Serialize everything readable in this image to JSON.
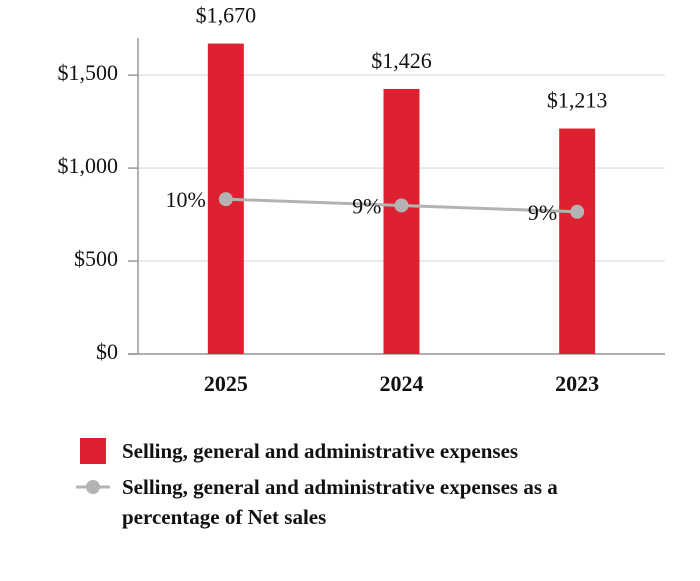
{
  "chart_data": {
    "type": "bar-line",
    "categories": [
      "2025",
      "2024",
      "2023"
    ],
    "series": [
      {
        "name": "Selling, general and administrative expenses",
        "type": "bar",
        "color": "#de2131",
        "values": [
          1670,
          1426,
          1213
        ],
        "value_labels": [
          "$1,670",
          "$1,426",
          "$1,213"
        ]
      },
      {
        "name": "Selling, general and administrative expenses as a percentage of Net sales",
        "type": "line",
        "axis": "y2",
        "color": "#b3b3b3",
        "values": [
          9.8,
          9.4,
          9.0
        ],
        "value_labels": [
          "10%",
          "9%",
          "9%"
        ]
      }
    ],
    "ylim": [
      0,
      1700
    ],
    "yticks": [
      {
        "value": 0,
        "label": "$0"
      },
      {
        "value": 500,
        "label": "$500"
      },
      {
        "value": 1000,
        "label": "$1,000"
      },
      {
        "value": 1500,
        "label": "$1,500"
      }
    ],
    "y2lim": [
      0,
      20
    ],
    "grid": true
  }
}
